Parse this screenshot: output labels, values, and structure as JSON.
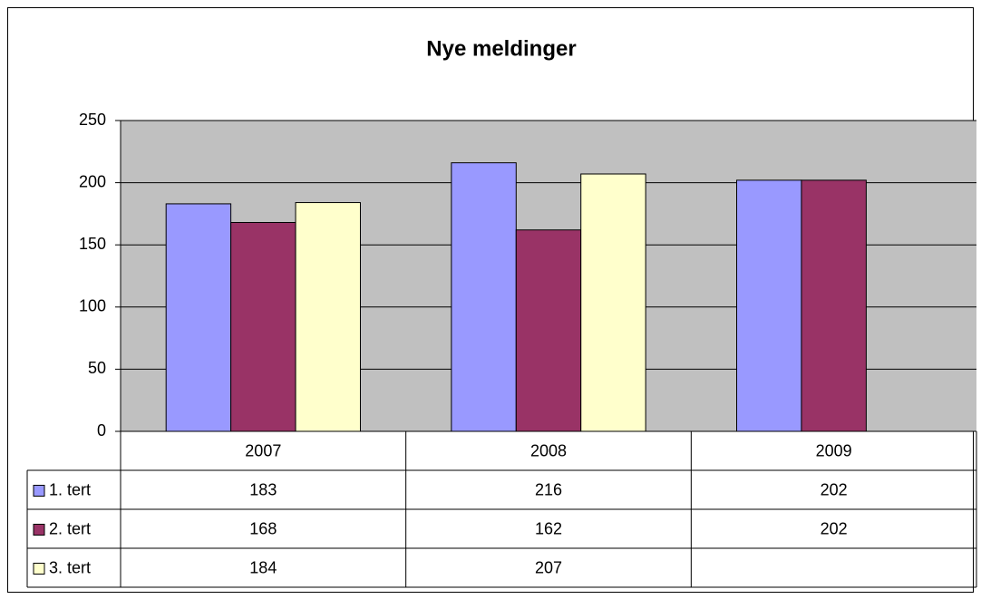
{
  "chart_data": {
    "type": "bar",
    "title": "Nye meldinger",
    "categories": [
      "2007",
      "2008",
      "2009"
    ],
    "series": [
      {
        "name": "1. tert",
        "color": "#9999ff",
        "values": [
          183,
          216,
          202
        ]
      },
      {
        "name": "2. tert",
        "color": "#993366",
        "values": [
          168,
          162,
          202
        ]
      },
      {
        "name": "3. tert",
        "color": "#ffffcc",
        "values": [
          184,
          207,
          null
        ]
      }
    ],
    "ylim": [
      0,
      250
    ],
    "yticks": [
      0,
      50,
      100,
      150,
      200,
      250
    ],
    "grid": true,
    "data_table": true
  }
}
